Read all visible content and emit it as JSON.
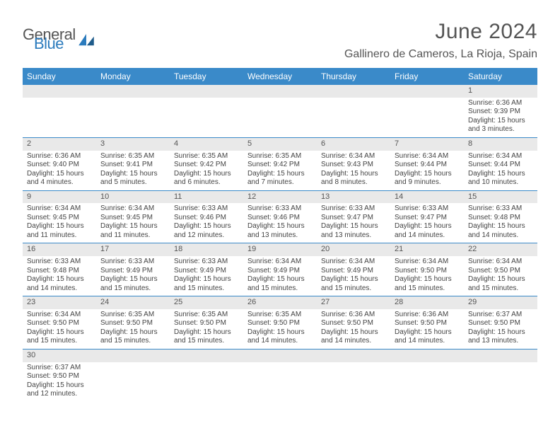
{
  "brand": {
    "part1": "General",
    "part2": "Blue"
  },
  "title": "June 2024",
  "location": "Gallinero de Cameros, La Rioja, Spain",
  "colors": {
    "header_bg": "#3a8ac9",
    "header_text": "#ffffff",
    "daynum_bg": "#e9e9e9",
    "week_divider": "#3a8ac9",
    "body_text": "#444444",
    "title_text": "#555555",
    "brand_blue": "#2b7bbd"
  },
  "weekdays": [
    "Sunday",
    "Monday",
    "Tuesday",
    "Wednesday",
    "Thursday",
    "Friday",
    "Saturday"
  ],
  "weeks": [
    [
      {
        "n": "",
        "sr": "",
        "ss": "",
        "dl": ""
      },
      {
        "n": "",
        "sr": "",
        "ss": "",
        "dl": ""
      },
      {
        "n": "",
        "sr": "",
        "ss": "",
        "dl": ""
      },
      {
        "n": "",
        "sr": "",
        "ss": "",
        "dl": ""
      },
      {
        "n": "",
        "sr": "",
        "ss": "",
        "dl": ""
      },
      {
        "n": "",
        "sr": "",
        "ss": "",
        "dl": ""
      },
      {
        "n": "1",
        "sr": "Sunrise: 6:36 AM",
        "ss": "Sunset: 9:39 PM",
        "dl": "Daylight: 15 hours and 3 minutes."
      }
    ],
    [
      {
        "n": "2",
        "sr": "Sunrise: 6:36 AM",
        "ss": "Sunset: 9:40 PM",
        "dl": "Daylight: 15 hours and 4 minutes."
      },
      {
        "n": "3",
        "sr": "Sunrise: 6:35 AM",
        "ss": "Sunset: 9:41 PM",
        "dl": "Daylight: 15 hours and 5 minutes."
      },
      {
        "n": "4",
        "sr": "Sunrise: 6:35 AM",
        "ss": "Sunset: 9:42 PM",
        "dl": "Daylight: 15 hours and 6 minutes."
      },
      {
        "n": "5",
        "sr": "Sunrise: 6:35 AM",
        "ss": "Sunset: 9:42 PM",
        "dl": "Daylight: 15 hours and 7 minutes."
      },
      {
        "n": "6",
        "sr": "Sunrise: 6:34 AM",
        "ss": "Sunset: 9:43 PM",
        "dl": "Daylight: 15 hours and 8 minutes."
      },
      {
        "n": "7",
        "sr": "Sunrise: 6:34 AM",
        "ss": "Sunset: 9:44 PM",
        "dl": "Daylight: 15 hours and 9 minutes."
      },
      {
        "n": "8",
        "sr": "Sunrise: 6:34 AM",
        "ss": "Sunset: 9:44 PM",
        "dl": "Daylight: 15 hours and 10 minutes."
      }
    ],
    [
      {
        "n": "9",
        "sr": "Sunrise: 6:34 AM",
        "ss": "Sunset: 9:45 PM",
        "dl": "Daylight: 15 hours and 11 minutes."
      },
      {
        "n": "10",
        "sr": "Sunrise: 6:34 AM",
        "ss": "Sunset: 9:45 PM",
        "dl": "Daylight: 15 hours and 11 minutes."
      },
      {
        "n": "11",
        "sr": "Sunrise: 6:33 AM",
        "ss": "Sunset: 9:46 PM",
        "dl": "Daylight: 15 hours and 12 minutes."
      },
      {
        "n": "12",
        "sr": "Sunrise: 6:33 AM",
        "ss": "Sunset: 9:46 PM",
        "dl": "Daylight: 15 hours and 13 minutes."
      },
      {
        "n": "13",
        "sr": "Sunrise: 6:33 AM",
        "ss": "Sunset: 9:47 PM",
        "dl": "Daylight: 15 hours and 13 minutes."
      },
      {
        "n": "14",
        "sr": "Sunrise: 6:33 AM",
        "ss": "Sunset: 9:47 PM",
        "dl": "Daylight: 15 hours and 14 minutes."
      },
      {
        "n": "15",
        "sr": "Sunrise: 6:33 AM",
        "ss": "Sunset: 9:48 PM",
        "dl": "Daylight: 15 hours and 14 minutes."
      }
    ],
    [
      {
        "n": "16",
        "sr": "Sunrise: 6:33 AM",
        "ss": "Sunset: 9:48 PM",
        "dl": "Daylight: 15 hours and 14 minutes."
      },
      {
        "n": "17",
        "sr": "Sunrise: 6:33 AM",
        "ss": "Sunset: 9:49 PM",
        "dl": "Daylight: 15 hours and 15 minutes."
      },
      {
        "n": "18",
        "sr": "Sunrise: 6:33 AM",
        "ss": "Sunset: 9:49 PM",
        "dl": "Daylight: 15 hours and 15 minutes."
      },
      {
        "n": "19",
        "sr": "Sunrise: 6:34 AM",
        "ss": "Sunset: 9:49 PM",
        "dl": "Daylight: 15 hours and 15 minutes."
      },
      {
        "n": "20",
        "sr": "Sunrise: 6:34 AM",
        "ss": "Sunset: 9:49 PM",
        "dl": "Daylight: 15 hours and 15 minutes."
      },
      {
        "n": "21",
        "sr": "Sunrise: 6:34 AM",
        "ss": "Sunset: 9:50 PM",
        "dl": "Daylight: 15 hours and 15 minutes."
      },
      {
        "n": "22",
        "sr": "Sunrise: 6:34 AM",
        "ss": "Sunset: 9:50 PM",
        "dl": "Daylight: 15 hours and 15 minutes."
      }
    ],
    [
      {
        "n": "23",
        "sr": "Sunrise: 6:34 AM",
        "ss": "Sunset: 9:50 PM",
        "dl": "Daylight: 15 hours and 15 minutes."
      },
      {
        "n": "24",
        "sr": "Sunrise: 6:35 AM",
        "ss": "Sunset: 9:50 PM",
        "dl": "Daylight: 15 hours and 15 minutes."
      },
      {
        "n": "25",
        "sr": "Sunrise: 6:35 AM",
        "ss": "Sunset: 9:50 PM",
        "dl": "Daylight: 15 hours and 15 minutes."
      },
      {
        "n": "26",
        "sr": "Sunrise: 6:35 AM",
        "ss": "Sunset: 9:50 PM",
        "dl": "Daylight: 15 hours and 14 minutes."
      },
      {
        "n": "27",
        "sr": "Sunrise: 6:36 AM",
        "ss": "Sunset: 9:50 PM",
        "dl": "Daylight: 15 hours and 14 minutes."
      },
      {
        "n": "28",
        "sr": "Sunrise: 6:36 AM",
        "ss": "Sunset: 9:50 PM",
        "dl": "Daylight: 15 hours and 14 minutes."
      },
      {
        "n": "29",
        "sr": "Sunrise: 6:37 AM",
        "ss": "Sunset: 9:50 PM",
        "dl": "Daylight: 15 hours and 13 minutes."
      }
    ],
    [
      {
        "n": "30",
        "sr": "Sunrise: 6:37 AM",
        "ss": "Sunset: 9:50 PM",
        "dl": "Daylight: 15 hours and 12 minutes."
      },
      {
        "n": "",
        "sr": "",
        "ss": "",
        "dl": ""
      },
      {
        "n": "",
        "sr": "",
        "ss": "",
        "dl": ""
      },
      {
        "n": "",
        "sr": "",
        "ss": "",
        "dl": ""
      },
      {
        "n": "",
        "sr": "",
        "ss": "",
        "dl": ""
      },
      {
        "n": "",
        "sr": "",
        "ss": "",
        "dl": ""
      },
      {
        "n": "",
        "sr": "",
        "ss": "",
        "dl": ""
      }
    ]
  ]
}
